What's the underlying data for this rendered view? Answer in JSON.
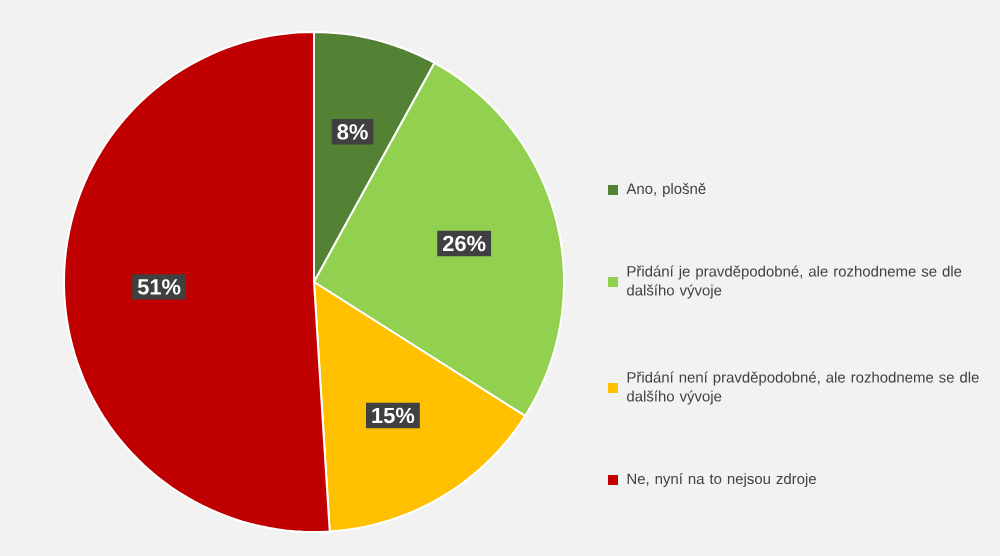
{
  "chart_data": {
    "type": "pie",
    "categories": [
      "Ano, plošně",
      "Přidání je pravděpodobné, ale rozhodneme se dle dalšího vývoje",
      "Přidání není pravděpodobné, ale rozhodneme se dle dalšího vývoje",
      "Ne, nyní na to nejsou zdroje"
    ],
    "values": [
      8,
      26,
      15,
      51
    ],
    "value_labels": [
      "8%",
      "26%",
      "15%",
      "51%"
    ],
    "colors": [
      "#548235",
      "#92d050",
      "#ffc000",
      "#c00000"
    ],
    "legend": "right"
  }
}
